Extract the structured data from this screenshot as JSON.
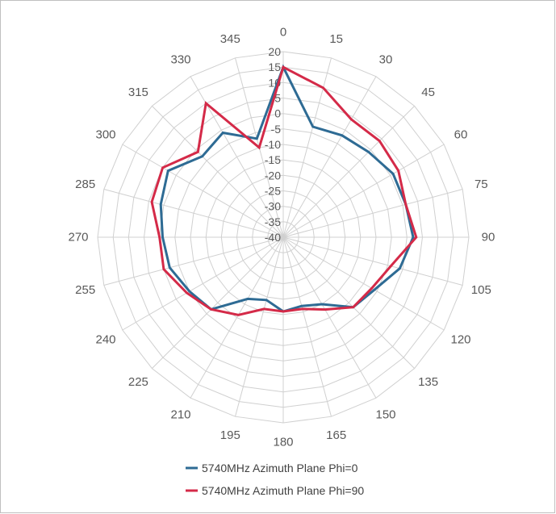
{
  "chart_data": {
    "type": "radar",
    "angles": [
      0,
      15,
      30,
      45,
      60,
      75,
      90,
      105,
      120,
      135,
      150,
      165,
      180,
      195,
      210,
      225,
      240,
      255,
      270,
      285,
      300,
      315,
      330,
      345
    ],
    "angle_labels": [
      "0",
      "15",
      "30",
      "45",
      "60",
      "75",
      "90",
      "105",
      "120",
      "135",
      "150",
      "165",
      "180",
      "195",
      "210",
      "225",
      "240",
      "255",
      "270",
      "285",
      "300",
      "315",
      "330",
      "345"
    ],
    "radial_ticks": [
      20,
      15,
      10,
      5,
      0,
      -5,
      -10,
      -15,
      -20,
      -25,
      -30,
      -35,
      -40
    ],
    "radial_tick_labels": [
      "20",
      "15",
      "10",
      "5",
      "0",
      "-5",
      "-10",
      "-15",
      "-20",
      "-25",
      "-30",
      "-35",
      "-40"
    ],
    "rlim": [
      -40,
      20
    ],
    "grid": true,
    "legend_position": "bottom",
    "series": [
      {
        "name": "5740MHz Azimuth Plane Phi=0",
        "color": "#2e6b94",
        "values": [
          15,
          -3,
          -2,
          -1,
          1,
          1,
          2,
          -1,
          -6,
          -8,
          -15,
          -17,
          -16,
          -19,
          -17,
          -7,
          -5,
          -2,
          -1,
          1,
          3,
          -3,
          -1,
          -7
        ]
      },
      {
        "name": "5740MHz Azimuth Plane Phi=90",
        "color": "#d42a48",
        "values": [
          15,
          10,
          4,
          4,
          3,
          1,
          3,
          -4,
          -7,
          -8,
          -13,
          -16,
          -16,
          -16,
          -11,
          -7,
          -4,
          0,
          0,
          4,
          5,
          -1,
          10,
          -10
        ]
      }
    ]
  }
}
